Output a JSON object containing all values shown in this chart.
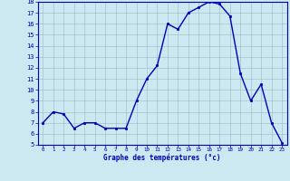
{
  "x": [
    0,
    1,
    2,
    3,
    4,
    5,
    6,
    7,
    8,
    9,
    10,
    11,
    12,
    13,
    14,
    15,
    16,
    17,
    18,
    19,
    20,
    21,
    22,
    23
  ],
  "y": [
    7.0,
    8.0,
    7.8,
    6.5,
    7.0,
    7.0,
    6.5,
    6.5,
    6.5,
    9.0,
    11.0,
    12.2,
    16.0,
    15.5,
    17.0,
    17.5,
    18.0,
    17.8,
    16.7,
    11.5,
    9.0,
    10.5,
    7.0,
    5.2
  ],
  "xlabel": "Graphe des températures (°c)",
  "ylim": [
    5,
    18
  ],
  "xlim_min": -0.5,
  "xlim_max": 23.5,
  "yticks": [
    5,
    6,
    7,
    8,
    9,
    10,
    11,
    12,
    13,
    14,
    15,
    16,
    17,
    18
  ],
  "xticks": [
    0,
    1,
    2,
    3,
    4,
    5,
    6,
    7,
    8,
    9,
    10,
    11,
    12,
    13,
    14,
    15,
    16,
    17,
    18,
    19,
    20,
    21,
    22,
    23
  ],
  "line_color": "#0000bb",
  "bg_color": "#cce8f0",
  "grid_color": "#99aabb",
  "axis_color": "#0000bb",
  "tick_label_color": "#0000bb",
  "xlabel_color": "#0000bb",
  "marker": ".",
  "linewidth": 1.0,
  "markersize": 3.5
}
